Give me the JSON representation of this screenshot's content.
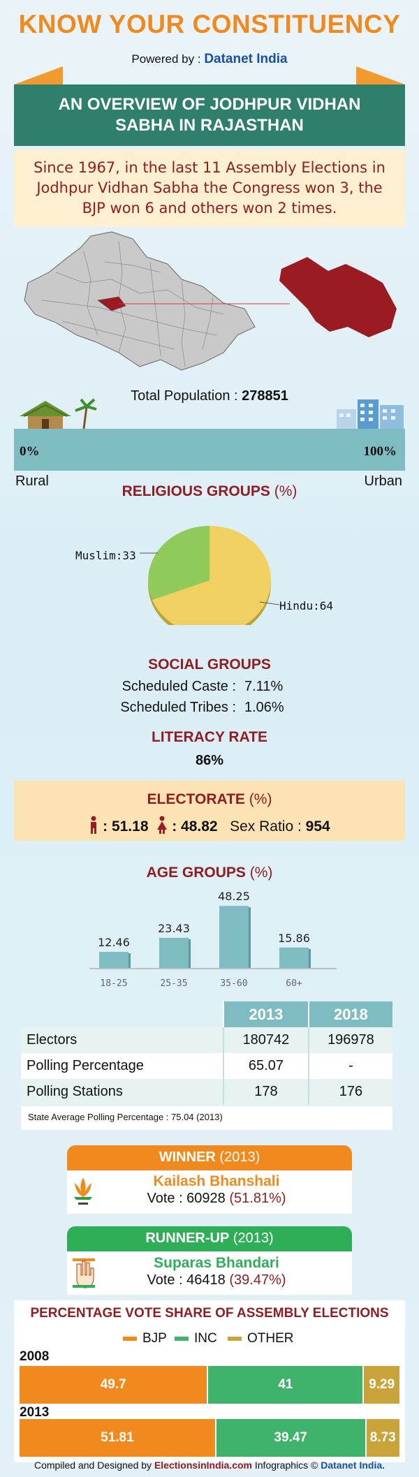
{
  "header": {
    "title": "KNOW YOUR CONSTITUENCY",
    "powered_prefix": "Powered by : ",
    "powered_brand": "Datanet India",
    "banner": "AN OVERVIEW OF JODHPUR VIDHAN SABHA IN RAJASTHAN",
    "history": "Since 1967, in the last 11 Assembly Elections in Jodhpur Vidhan Sabha the Congress won 3, the BJP won 6 and others won 2 times."
  },
  "colors": {
    "orange": "#f08a1e",
    "teal": "#2e7f6b",
    "dark_red": "#8f1d22",
    "bar_teal": "#7fbcc2",
    "map_red": "#9b1b22",
    "bjp": "#f08a1e",
    "inc": "#3fb36b",
    "other": "#c8a43a"
  },
  "population": {
    "label": "Total Population : ",
    "value": "278851",
    "rural_pct": "0%",
    "urban_pct": "100%",
    "rural_label": "Rural",
    "urban_label": "Urban",
    "rural_icon": "hut-icon",
    "urban_icon": "city-buildings-icon"
  },
  "religious": {
    "title": "RELIGIOUS GROUPS",
    "unit": "(%)",
    "muslim_label": "Muslim:33",
    "hindu_label": "Hindu:64"
  },
  "social": {
    "title": "SOCIAL GROUPS",
    "sc_label": "Scheduled Caste :",
    "sc_value": "7.11%",
    "st_label": "Scheduled Tribes :",
    "st_value": "1.06%"
  },
  "literacy": {
    "title": "LITERACY RATE",
    "value": "86%"
  },
  "electorate": {
    "title": "ELECTORATE",
    "unit": "(%)",
    "male": ": 51.18",
    "female": ": 48.82",
    "sex_ratio_label": "Sex Ratio : ",
    "sex_ratio_value": "954",
    "male_icon": "male-figure-icon",
    "female_icon": "female-figure-icon"
  },
  "age": {
    "title": "AGE GROUPS",
    "unit": "(%)"
  },
  "chart_data": {
    "type": "bar",
    "title": "AGE GROUPS (%)",
    "categories": [
      "18-25",
      "25-35",
      "35-60",
      "60+"
    ],
    "values": [
      12.46,
      23.43,
      48.25,
      15.86
    ],
    "value_labels": [
      "12.46",
      "23.43",
      "48.25",
      "15.86"
    ],
    "ylim": [
      0,
      50
    ],
    "grid": false
  },
  "polling": {
    "years": [
      "2013",
      "2018"
    ],
    "rows": [
      {
        "label": "Electors",
        "v2013": "180742",
        "v2018": "196978"
      },
      {
        "label": "Polling Percentage",
        "v2013": "65.07",
        "v2018": "-"
      },
      {
        "label": "Polling Stations",
        "v2013": "178",
        "v2018": "176"
      }
    ],
    "note": "State Average Polling Percentage : 75.04 (2013)"
  },
  "winner": {
    "title": "WINNER",
    "year": "(2013)",
    "name": "Kailash Bhanshali",
    "vote_label": "Vote : 60928",
    "vote_pct": "(51.81%)",
    "party_icon": "bjp-lotus-icon"
  },
  "runner_up": {
    "title": "RUNNER-UP",
    "year": "(2013)",
    "name": "Suparas Bhandari",
    "vote_label": "Vote : 46418",
    "vote_pct": "(39.47%)",
    "party_icon": "inc-hand-icon"
  },
  "vote_share": {
    "title": "PERCENTAGE VOTE SHARE OF ASSEMBLY ELECTIONS",
    "legend": [
      "BJP",
      "INC",
      "OTHER"
    ],
    "rows": [
      {
        "year": "2008",
        "bjp": 49.7,
        "inc": 41,
        "other": 9.29,
        "bjp_label": "49.7",
        "inc_label": "41",
        "other_label": "9.29"
      },
      {
        "year": "2013",
        "bjp": 51.81,
        "inc": 39.47,
        "other": 8.73,
        "bjp_label": "51.81",
        "inc_label": "39.47",
        "other_label": "8.73"
      }
    ]
  },
  "footer": {
    "prefix": "Compiled and Designed by ",
    "site": "ElectionsinIndia.com",
    "mid": " Infographics © ",
    "brand": "Datanet India."
  }
}
